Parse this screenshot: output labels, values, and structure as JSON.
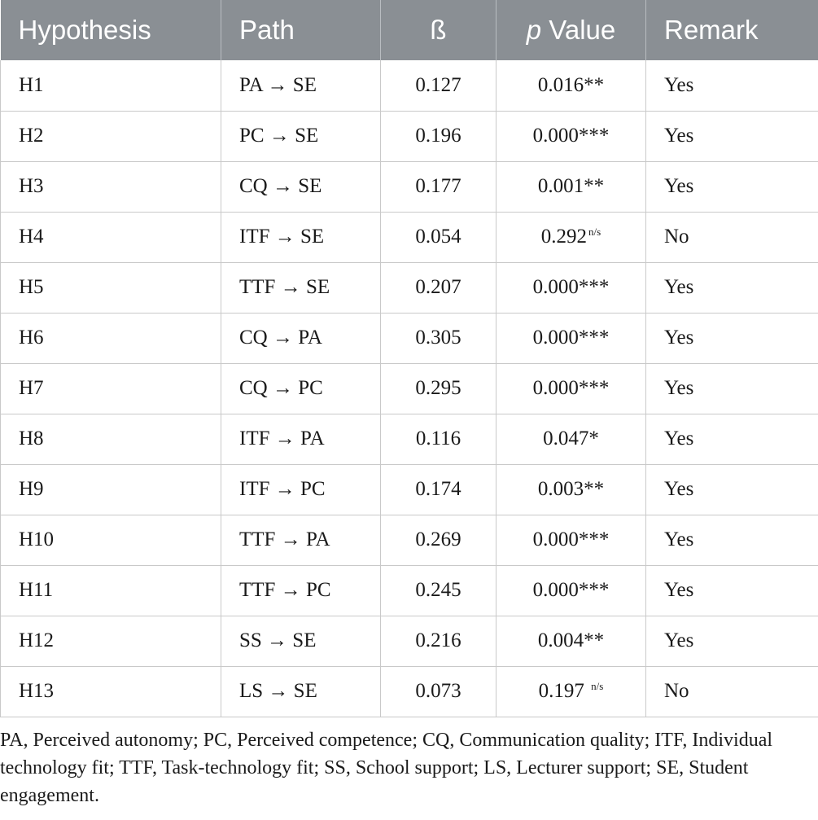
{
  "table": {
    "headers": {
      "hypothesis": "Hypothesis",
      "path": "Path",
      "beta": "ß",
      "p_italic": "p",
      "p_rest": " Value",
      "remark": "Remark"
    },
    "rows": [
      {
        "hypothesis": "H1",
        "path": "PA → SE",
        "beta": "0.127",
        "p": "0.016**",
        "p_sup": "",
        "remark": "Yes"
      },
      {
        "hypothesis": "H2",
        "path": "PC → SE",
        "beta": "0.196",
        "p": "0.000***",
        "p_sup": "",
        "remark": "Yes"
      },
      {
        "hypothesis": "H3",
        "path": "CQ → SE",
        "beta": "0.177",
        "p": "0.001**",
        "p_sup": "",
        "remark": "Yes"
      },
      {
        "hypothesis": "H4",
        "path": "ITF → SE",
        "beta": "0.054",
        "p": "0.292",
        "p_sup": "n/s",
        "remark": "No"
      },
      {
        "hypothesis": "H5",
        "path": "TTF → SE",
        "beta": "0.207",
        "p": "0.000***",
        "p_sup": "",
        "remark": "Yes"
      },
      {
        "hypothesis": "H6",
        "path": "CQ → PA",
        "beta": "0.305",
        "p": "0.000***",
        "p_sup": "",
        "remark": "Yes"
      },
      {
        "hypothesis": "H7",
        "path": "CQ → PC",
        "beta": "0.295",
        "p": "0.000***",
        "p_sup": "",
        "remark": "Yes"
      },
      {
        "hypothesis": "H8",
        "path": "ITF → PA",
        "beta": "0.116",
        "p": "0.047*",
        "p_sup": "",
        "remark": "Yes"
      },
      {
        "hypothesis": "H9",
        "path": "ITF → PC",
        "beta": "0.174",
        "p": "0.003**",
        "p_sup": "",
        "remark": "Yes"
      },
      {
        "hypothesis": "H10",
        "path": "TTF → PA",
        "beta": "0.269",
        "p": "0.000***",
        "p_sup": "",
        "remark": "Yes"
      },
      {
        "hypothesis": "H11",
        "path": "TTF → PC",
        "beta": "0.245",
        "p": "0.000***",
        "p_sup": "",
        "remark": "Yes"
      },
      {
        "hypothesis": "H12",
        "path": "SS → SE",
        "beta": "0.216",
        "p": "0.004**",
        "p_sup": "",
        "remark": "Yes"
      },
      {
        "hypothesis": "H13",
        "path": "LS → SE",
        "beta": "0.073",
        "p": "0.197 ",
        "p_sup": "n/s",
        "remark": "No"
      }
    ]
  },
  "footnote": "PA, Perceived autonomy; PC, Perceived competence; CQ, Communication quality; ITF, Individual technology fit; TTF, Task-technology fit; SS, School support; LS, Lecturer support; SE, Student engagement.",
  "colors": {
    "header_bg": "#8a8f94",
    "header_text": "#ffffff",
    "grid": "#c9c9c9"
  }
}
